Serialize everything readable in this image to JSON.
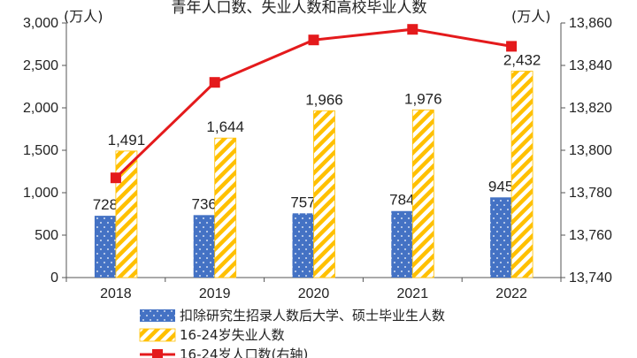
{
  "chart_data": {
    "type": "bar",
    "title": "青年人口数、失业人数和高校毕业人数",
    "categories": [
      "2018",
      "2019",
      "2020",
      "2021",
      "2022"
    ],
    "left_axis": {
      "unit": "(万人)",
      "ylim": [
        0,
        3000
      ],
      "ticks": [
        "3,000",
        "2,500",
        "2,000",
        "1,500",
        "1,000",
        "500",
        "0"
      ]
    },
    "right_axis": {
      "unit": "(万人)",
      "ylim": [
        13740,
        13860
      ],
      "ticks": [
        "13,860",
        "13,840",
        "13,820",
        "13,800",
        "13,780",
        "13,760",
        "13,740"
      ]
    },
    "series": [
      {
        "name": "扣除研究生招录人数后大学、硕士毕业生人数",
        "type": "bar",
        "axis": "left",
        "color": "#4472C4",
        "values": [
          728,
          736,
          757,
          784,
          945
        ],
        "labels": [
          "728",
          "736",
          "757",
          "784",
          "945"
        ]
      },
      {
        "name": "16-24岁失业人数",
        "type": "bar",
        "axis": "left",
        "color": "#FFC000",
        "pattern": "diagonal-stripes",
        "values": [
          1491,
          1644,
          1966,
          1976,
          2432
        ],
        "labels": [
          "1,491",
          "1,644",
          "1,966",
          "1,976",
          "2,432"
        ]
      },
      {
        "name": "16-24岁人口数(右轴)",
        "type": "line",
        "axis": "right",
        "color": "#E41A1C",
        "marker": "square",
        "values": [
          13787,
          13832,
          13852,
          13857,
          13849
        ]
      }
    ],
    "grid": false,
    "legend_position": "bottom"
  }
}
